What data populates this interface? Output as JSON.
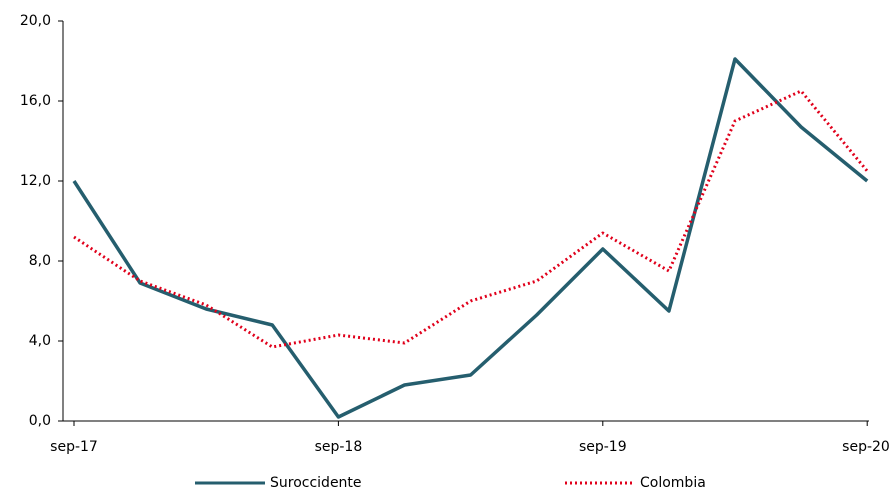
{
  "chart_data": {
    "type": "line",
    "categories": [
      "sep-17",
      null,
      null,
      null,
      "sep-18",
      null,
      null,
      null,
      "sep-19",
      null,
      null,
      null,
      "sep-20"
    ],
    "series": [
      {
        "name": "Suroccidente",
        "color": "#255e6e",
        "style": "solid",
        "values": [
          12.0,
          6.9,
          5.6,
          4.8,
          0.2,
          1.8,
          2.3,
          5.3,
          8.6,
          5.5,
          18.1,
          14.7,
          12.0
        ]
      },
      {
        "name": "Colombia",
        "color": "#e0001b",
        "style": "dotted",
        "values": [
          9.2,
          7.0,
          5.8,
          3.7,
          4.3,
          3.9,
          6.0,
          7.0,
          9.4,
          7.5,
          15.0,
          16.5,
          12.5
        ]
      }
    ],
    "ylim": [
      0,
      20
    ],
    "yticks": [
      {
        "value": 0,
        "label": "0,0"
      },
      {
        "value": 4,
        "label": "4,0"
      },
      {
        "value": 8,
        "label": "8,0"
      },
      {
        "value": 12,
        "label": "12,0"
      },
      {
        "value": 16,
        "label": "16,0"
      },
      {
        "value": 20,
        "label": "20,0"
      }
    ],
    "legend": "bottom"
  }
}
